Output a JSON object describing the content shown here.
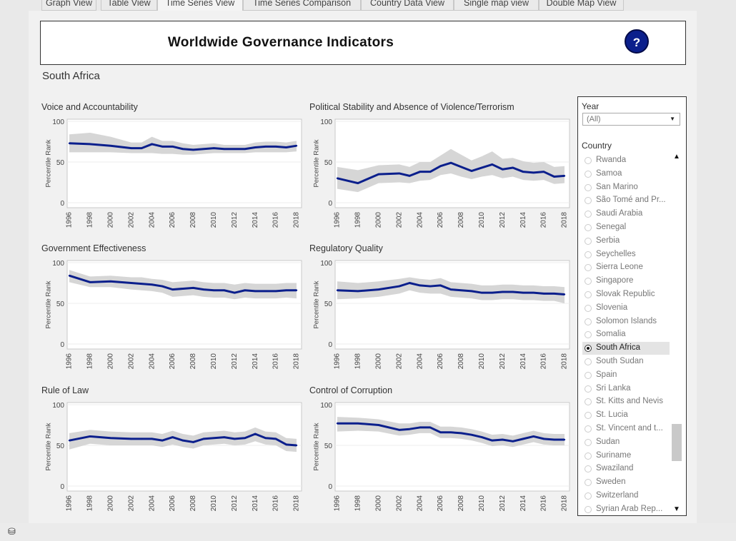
{
  "tabs": [
    "Graph View",
    "Table View",
    "Time Series View",
    "Time Series Comparison",
    "Country Data View",
    "Single map view",
    "Double Map View"
  ],
  "active_tab": "Time Series View",
  "header": {
    "title": "Worldwide Governance Indicators",
    "help_label": "?"
  },
  "country_title": "South Africa",
  "filters": {
    "year_label": "Year",
    "year_value": "(All)",
    "country_label": "Country",
    "countries": [
      "Rwanda",
      "Samoa",
      "San Marino",
      "São Tomé and Pr...",
      "Saudi Arabia",
      "Senegal",
      "Serbia",
      "Seychelles",
      "Sierra Leone",
      "Singapore",
      "Slovak Republic",
      "Slovenia",
      "Solomon Islands",
      "Somalia",
      "South Africa",
      "South Sudan",
      "Spain",
      "Sri Lanka",
      "St. Kitts and Nevis",
      "St. Lucia",
      "St. Vincent and t...",
      "Sudan",
      "Suriname",
      "Swaziland",
      "Sweden",
      "Switzerland",
      "Syrian Arab Rep..."
    ],
    "selected_country": "South Africa"
  },
  "colors": {
    "line": "#0b1f8c",
    "band": "#d6d6d6"
  },
  "chart_data": [
    {
      "type": "line",
      "title": "Voice and Accountability",
      "ylabel": "Percentile Rank",
      "ylim": [
        0,
        100
      ],
      "yticks": [
        0,
        50,
        100
      ],
      "x": [
        1996,
        1998,
        2000,
        2002,
        2003,
        2004,
        2005,
        2006,
        2007,
        2008,
        2009,
        2010,
        2011,
        2012,
        2013,
        2014,
        2015,
        2016,
        2017,
        2018
      ],
      "xticks": [
        1996,
        1998,
        2000,
        2002,
        2004,
        2006,
        2008,
        2010,
        2012,
        2014,
        2016,
        2018
      ],
      "series": [
        {
          "values": [
            73,
            72,
            70,
            67,
            67,
            72,
            69,
            69,
            66,
            65,
            66,
            67,
            66,
            66,
            66,
            68,
            69,
            69,
            68,
            70
          ],
          "lower": [
            62,
            62,
            62,
            61,
            61,
            61,
            60,
            60,
            59,
            59,
            60,
            61,
            61,
            61,
            61,
            62,
            62,
            62,
            62,
            63
          ],
          "upper": [
            84,
            86,
            81,
            74,
            74,
            81,
            76,
            76,
            73,
            71,
            72,
            73,
            71,
            71,
            71,
            74,
            75,
            75,
            74,
            76
          ]
        }
      ]
    },
    {
      "type": "line",
      "title": "Political Stability and Absence of Violence/Terrorism",
      "ylabel": "Percentile Rank",
      "ylim": [
        0,
        100
      ],
      "yticks": [
        0,
        50,
        100
      ],
      "x": [
        1996,
        1998,
        2000,
        2002,
        2003,
        2004,
        2005,
        2006,
        2007,
        2008,
        2009,
        2010,
        2011,
        2012,
        2013,
        2014,
        2015,
        2016,
        2017,
        2018
      ],
      "xticks": [
        1996,
        1998,
        2000,
        2002,
        2004,
        2006,
        2008,
        2010,
        2012,
        2014,
        2016,
        2018
      ],
      "series": [
        {
          "values": [
            30,
            24,
            35,
            36,
            33,
            38,
            38,
            45,
            49,
            44,
            39,
            43,
            47,
            41,
            43,
            38,
            37,
            38,
            32,
            33
          ],
          "lower": [
            17,
            13,
            24,
            25,
            24,
            27,
            28,
            34,
            36,
            32,
            29,
            32,
            34,
            30,
            32,
            28,
            27,
            28,
            23,
            24
          ],
          "upper": [
            44,
            40,
            46,
            47,
            44,
            50,
            50,
            58,
            66,
            59,
            52,
            57,
            63,
            54,
            55,
            51,
            49,
            50,
            44,
            45
          ]
        }
      ]
    },
    {
      "type": "line",
      "title": "Government Effectiveness",
      "ylabel": "Percentile Rank",
      "ylim": [
        0,
        100
      ],
      "yticks": [
        0,
        50,
        100
      ],
      "x": [
        1996,
        1998,
        2000,
        2002,
        2003,
        2004,
        2005,
        2006,
        2007,
        2008,
        2009,
        2010,
        2011,
        2012,
        2013,
        2014,
        2015,
        2016,
        2017,
        2018
      ],
      "xticks": [
        1996,
        1998,
        2000,
        2002,
        2004,
        2006,
        2008,
        2010,
        2012,
        2014,
        2016,
        2018
      ],
      "series": [
        {
          "values": [
            84,
            76,
            77,
            75,
            74,
            73,
            71,
            67,
            68,
            69,
            67,
            66,
            66,
            63,
            66,
            65,
            65,
            65,
            66,
            66
          ],
          "lower": [
            76,
            70,
            70,
            67,
            66,
            65,
            63,
            58,
            59,
            60,
            58,
            57,
            57,
            55,
            57,
            56,
            56,
            56,
            57,
            56
          ],
          "upper": [
            91,
            83,
            84,
            82,
            82,
            80,
            79,
            76,
            77,
            78,
            76,
            75,
            75,
            73,
            75,
            74,
            74,
            74,
            75,
            75
          ]
        }
      ]
    },
    {
      "type": "line",
      "title": "Regulatory Quality",
      "ylabel": "Percentile Rank",
      "ylim": [
        0,
        100
      ],
      "yticks": [
        0,
        50,
        100
      ],
      "x": [
        1996,
        1998,
        2000,
        2002,
        2003,
        2004,
        2005,
        2006,
        2007,
        2008,
        2009,
        2010,
        2011,
        2012,
        2013,
        2014,
        2015,
        2016,
        2017,
        2018
      ],
      "xticks": [
        1996,
        1998,
        2000,
        2002,
        2004,
        2006,
        2008,
        2010,
        2012,
        2014,
        2016,
        2018
      ],
      "series": [
        {
          "values": [
            66,
            65,
            67,
            71,
            75,
            72,
            71,
            72,
            67,
            66,
            65,
            63,
            63,
            64,
            64,
            63,
            63,
            62,
            62,
            61
          ],
          "lower": [
            55,
            56,
            58,
            62,
            66,
            63,
            62,
            62,
            58,
            57,
            56,
            54,
            54,
            55,
            55,
            54,
            54,
            53,
            53,
            50
          ],
          "upper": [
            77,
            75,
            77,
            80,
            82,
            80,
            79,
            81,
            76,
            75,
            74,
            72,
            72,
            73,
            73,
            72,
            72,
            71,
            71,
            70
          ]
        }
      ]
    },
    {
      "type": "line",
      "title": "Rule of Law",
      "ylabel": "Percentile Rank",
      "ylim": [
        0,
        100
      ],
      "yticks": [
        0,
        50,
        100
      ],
      "x": [
        1996,
        1998,
        2000,
        2002,
        2003,
        2004,
        2005,
        2006,
        2007,
        2008,
        2009,
        2010,
        2011,
        2012,
        2013,
        2014,
        2015,
        2016,
        2017,
        2018
      ],
      "xticks": [
        1996,
        1998,
        2000,
        2002,
        2004,
        2006,
        2008,
        2010,
        2012,
        2014,
        2016,
        2018
      ],
      "series": [
        {
          "values": [
            56,
            61,
            59,
            58,
            58,
            58,
            56,
            60,
            56,
            54,
            58,
            59,
            60,
            58,
            59,
            64,
            59,
            58,
            51,
            50
          ],
          "lower": [
            45,
            52,
            50,
            50,
            50,
            50,
            48,
            51,
            48,
            46,
            50,
            51,
            52,
            50,
            51,
            55,
            51,
            50,
            43,
            42
          ],
          "upper": [
            65,
            69,
            67,
            66,
            66,
            66,
            64,
            68,
            64,
            62,
            66,
            67,
            68,
            66,
            67,
            72,
            67,
            66,
            59,
            58
          ]
        }
      ]
    },
    {
      "type": "line",
      "title": "Control of Corruption",
      "ylabel": "Percentile Rank",
      "ylim": [
        0,
        100
      ],
      "yticks": [
        0,
        50,
        100
      ],
      "x": [
        1996,
        1998,
        2000,
        2002,
        2003,
        2004,
        2005,
        2006,
        2007,
        2008,
        2009,
        2010,
        2011,
        2012,
        2013,
        2014,
        2015,
        2016,
        2017,
        2018
      ],
      "xticks": [
        1996,
        1998,
        2000,
        2002,
        2004,
        2006,
        2008,
        2010,
        2012,
        2014,
        2016,
        2018
      ],
      "series": [
        {
          "values": [
            77,
            77,
            75,
            69,
            70,
            72,
            72,
            66,
            66,
            65,
            63,
            60,
            56,
            57,
            55,
            58,
            61,
            58,
            57,
            57
          ],
          "lower": [
            67,
            68,
            67,
            62,
            63,
            65,
            65,
            59,
            59,
            58,
            56,
            53,
            49,
            50,
            48,
            51,
            54,
            51,
            50,
            50
          ],
          "upper": [
            85,
            84,
            82,
            77,
            77,
            79,
            79,
            73,
            73,
            72,
            70,
            67,
            63,
            64,
            62,
            65,
            68,
            65,
            64,
            64
          ]
        }
      ]
    }
  ]
}
